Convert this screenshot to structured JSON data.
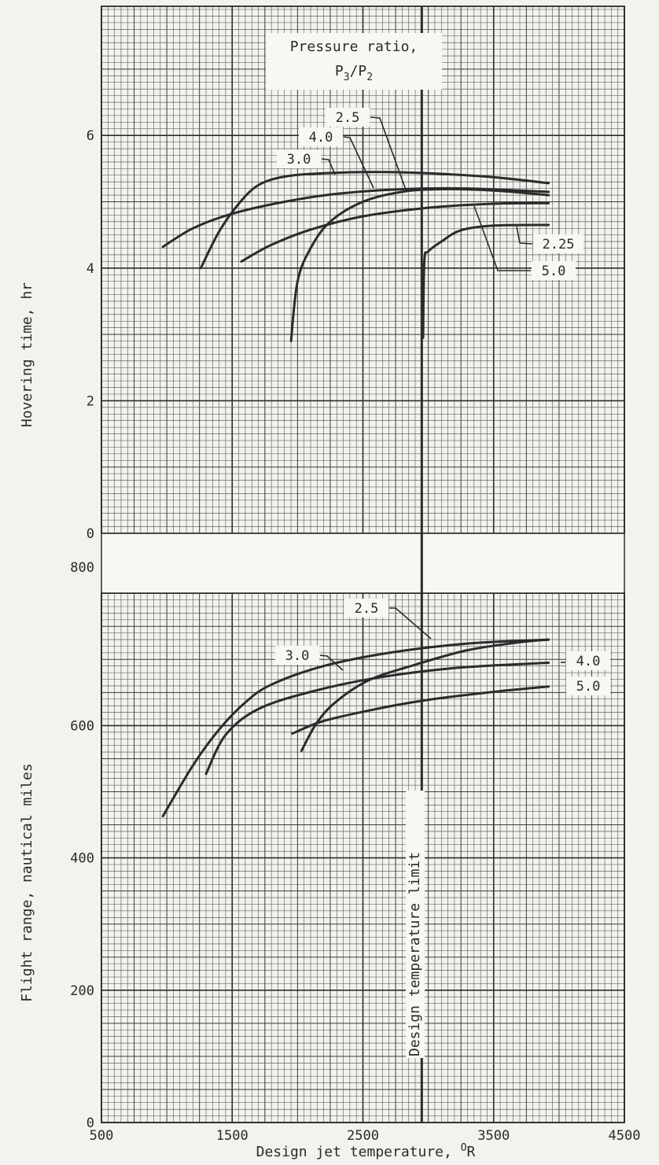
{
  "chart_data": [
    {
      "type": "line",
      "panel": "top",
      "ylabel": "Hovering time, hr",
      "xlim": [
        500,
        4500
      ],
      "ylim": [
        0,
        8
      ],
      "y_ticks": [
        "0",
        "2",
        "4",
        "6"
      ],
      "grid": true,
      "legend_title": [
        "Pressure ratio,",
        "P3/P2"
      ],
      "legend_placement": "top-center",
      "annotation": "Design temperature limit",
      "limit_x": 2950,
      "series": [
        {
          "name": "3.0",
          "points": [
            [
              1260,
              4.0
            ],
            [
              1400,
              4.55
            ],
            [
              1550,
              4.97
            ],
            [
              1700,
              5.25
            ],
            [
              1900,
              5.38
            ],
            [
              2200,
              5.43
            ],
            [
              2600,
              5.45
            ],
            [
              3000,
              5.43
            ],
            [
              3500,
              5.37
            ],
            [
              3920,
              5.28
            ]
          ]
        },
        {
          "name": "4.0",
          "points": [
            [
              970,
              4.32
            ],
            [
              1200,
              4.6
            ],
            [
              1500,
              4.82
            ],
            [
              1900,
              5.0
            ],
            [
              2300,
              5.12
            ],
            [
              2800,
              5.19
            ],
            [
              3300,
              5.2
            ],
            [
              3920,
              5.15
            ]
          ]
        },
        {
          "name": "2.5",
          "points": [
            [
              1950,
              2.9
            ],
            [
              2000,
              3.8
            ],
            [
              2100,
              4.3
            ],
            [
              2250,
              4.7
            ],
            [
              2500,
              5.0
            ],
            [
              2800,
              5.15
            ],
            [
              3100,
              5.19
            ],
            [
              3500,
              5.17
            ],
            [
              3920,
              5.1
            ]
          ]
        },
        {
          "name": "5.0",
          "points": [
            [
              1570,
              4.1
            ],
            [
              1800,
              4.35
            ],
            [
              2100,
              4.58
            ],
            [
              2500,
              4.78
            ],
            [
              3000,
              4.91
            ],
            [
              3500,
              4.97
            ],
            [
              3920,
              4.98
            ]
          ]
        },
        {
          "name": "2.25",
          "points": [
            [
              2960,
              2.95
            ],
            [
              2970,
              4.1
            ],
            [
              3000,
              4.25
            ],
            [
              3100,
              4.4
            ],
            [
              3250,
              4.57
            ],
            [
              3500,
              4.64
            ],
            [
              3920,
              4.65
            ]
          ]
        }
      ],
      "curve_labels": [
        "2.5",
        "4.0",
        "3.0",
        "2.25",
        "5.0"
      ]
    },
    {
      "type": "line",
      "panel": "bottom",
      "xlabel": "Design jet temperature, °R",
      "ylabel": "Flight range, nautical miles",
      "xlim": [
        500,
        4500
      ],
      "ylim": [
        0,
        800
      ],
      "x_ticks": [
        "500",
        "1500",
        "2500",
        "3500",
        "4500"
      ],
      "y_ticks": [
        "0",
        "200",
        "400",
        "600",
        "800"
      ],
      "grid": true,
      "series": [
        {
          "name": "3.0",
          "points": [
            [
              970,
              463
            ],
            [
              1200,
              540
            ],
            [
              1400,
              594
            ],
            [
              1600,
              635
            ],
            [
              1800,
              662
            ],
            [
              2200,
              690
            ],
            [
              2700,
              710
            ],
            [
              3300,
              724
            ],
            [
              3920,
              730
            ]
          ]
        },
        {
          "name": "4.0",
          "points": [
            [
              1300,
              527
            ],
            [
              1450,
              586
            ],
            [
              1700,
              625
            ],
            [
              2100,
              651
            ],
            [
              2600,
              672
            ],
            [
              3200,
              687
            ],
            [
              3920,
              695
            ]
          ]
        },
        {
          "name": "2.5",
          "points": [
            [
              2030,
              562
            ],
            [
              2150,
              605
            ],
            [
              2300,
              637
            ],
            [
              2550,
              669
            ],
            [
              2900,
              692
            ],
            [
              3300,
              714
            ],
            [
              3700,
              726
            ],
            [
              3920,
              730
            ]
          ]
        },
        {
          "name": "5.0",
          "points": [
            [
              1960,
              588
            ],
            [
              2200,
              607
            ],
            [
              2600,
              625
            ],
            [
              3000,
              639
            ],
            [
              3500,
              651
            ],
            [
              3920,
              659
            ]
          ]
        }
      ],
      "curve_labels": [
        "2.5",
        "3.0",
        "4.0",
        "5.0"
      ]
    }
  ]
}
